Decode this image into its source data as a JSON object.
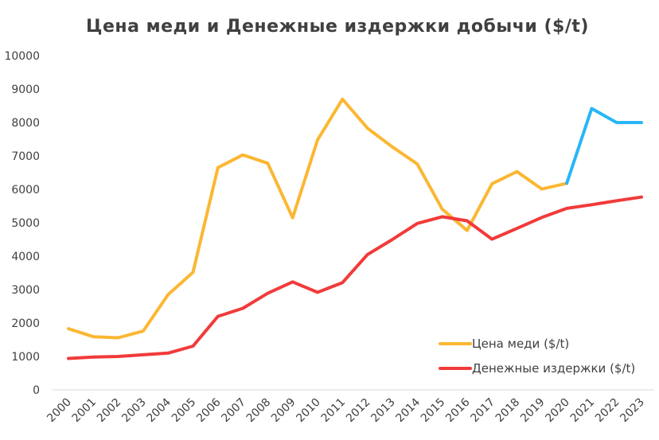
{
  "chart_data": {
    "type": "line",
    "title": "Цена меди и Денежные издержки добычи ($/t)",
    "xlabel": "",
    "ylabel": "",
    "ylim": [
      0,
      10000
    ],
    "yticks": [
      0,
      1000,
      2000,
      3000,
      4000,
      5000,
      6000,
      7000,
      8000,
      9000,
      10000
    ],
    "grid": false,
    "legend_position": "bottom-right",
    "categories": [
      "2000",
      "2001",
      "2002",
      "2003",
      "2004",
      "2005",
      "2006",
      "2007",
      "2008",
      "2009",
      "2010",
      "2011",
      "2012",
      "2013",
      "2014",
      "2015",
      "2016",
      "2017",
      "2018",
      "2019",
      "2020",
      "2021",
      "2022",
      "2023"
    ],
    "series": [
      {
        "name": "Цена меди ($/t)",
        "color": "#FBB733",
        "values": [
          1830,
          1590,
          1560,
          1760,
          2850,
          3520,
          6650,
          7030,
          6780,
          5150,
          7480,
          8700,
          7830,
          7270,
          6760,
          5410,
          4770,
          6170,
          6530,
          6010,
          6180,
          null,
          null,
          null
        ],
        "forecast_color": "#29B6F6",
        "forecast_values": [
          null,
          null,
          null,
          null,
          null,
          null,
          null,
          null,
          null,
          null,
          null,
          null,
          null,
          null,
          null,
          null,
          null,
          null,
          null,
          null,
          6180,
          8420,
          8000,
          8000
        ]
      },
      {
        "name": "Денежные издержки ($/t)",
        "color": "#F23A3A",
        "values": [
          940,
          980,
          1000,
          1050,
          1100,
          1310,
          2200,
          2440,
          2890,
          3230,
          2920,
          3210,
          4050,
          4500,
          4980,
          5180,
          5060,
          4510,
          4830,
          5160,
          5430,
          5540,
          5660,
          5770
        ]
      }
    ]
  }
}
